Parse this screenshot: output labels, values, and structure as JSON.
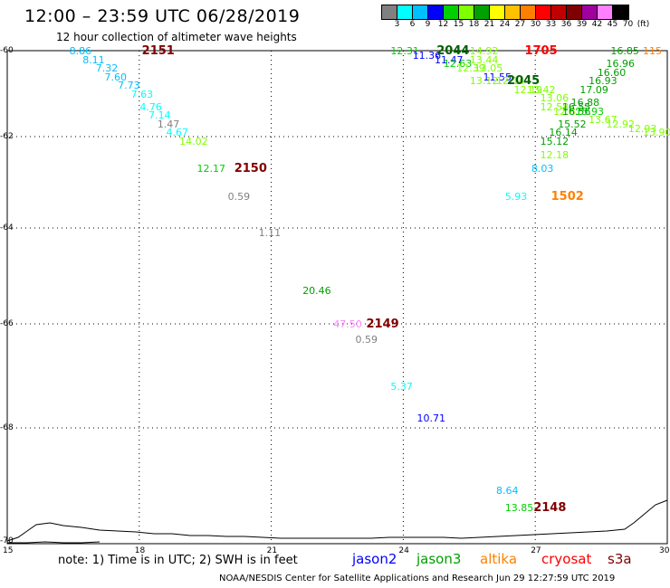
{
  "title": "12:00 – 23:59 UTC 06/28/2019",
  "subtitle": "12 hour collection of altimeter wave heights",
  "colorbar": {
    "colors": [
      "#808080",
      "#00ffff",
      "#00bfff",
      "#0000ff",
      "#00d000",
      "#80ff00",
      "#00a000",
      "#ffff00",
      "#ffc000",
      "#ff8000",
      "#ff0000",
      "#c00000",
      "#800000",
      "#a000a0",
      "#ff80ff",
      "#000000"
    ],
    "labels": [
      "3",
      "6",
      "9",
      "12",
      "15",
      "18",
      "21",
      "24",
      "27",
      "30",
      "33",
      "36",
      "39",
      "42",
      "45",
      "70",
      "(ft)"
    ]
  },
  "axes": {
    "y_ticks": [
      "-60",
      "-62",
      "-64",
      "-66",
      "-68",
      "-70"
    ],
    "x_ticks": [
      "15",
      "18",
      "21",
      "24",
      "27",
      "30"
    ]
  },
  "chart_data": {
    "type": "scatter",
    "x_range_deg_e": [
      15,
      30
    ],
    "y_range_deg_lat": [
      -70,
      -60
    ],
    "grid": "dotted",
    "points": [
      {
        "id": "p1",
        "text": "8.86",
        "color": "#00bfff",
        "lon": 16.7,
        "lat": -60.0
      },
      {
        "id": "p2",
        "text": "8.11",
        "color": "#00bfff",
        "lon": 17.0,
        "lat": -60.2
      },
      {
        "id": "p3",
        "text": "7.32",
        "color": "#00bfff",
        "lon": 17.3,
        "lat": -60.4
      },
      {
        "id": "p4",
        "text": "7.60",
        "color": "#00bfff",
        "lon": 17.5,
        "lat": -60.6
      },
      {
        "id": "p5",
        "text": "7.73",
        "color": "#00bfff",
        "lon": 17.8,
        "lat": -60.8
      },
      {
        "id": "p6",
        "text": "7.63",
        "color": "#00ffff",
        "lon": 18.1,
        "lat": -61.0
      },
      {
        "id": "p7",
        "text": "4.76",
        "color": "#00ffff",
        "lon": 18.3,
        "lat": -61.3
      },
      {
        "id": "p8",
        "text": "7.14",
        "color": "#00ffff",
        "lon": 18.5,
        "lat": -61.5
      },
      {
        "id": "p9",
        "text": "1.47",
        "color": "#808080",
        "lon": 18.7,
        "lat": -61.7
      },
      {
        "id": "p10",
        "text": "4.67",
        "color": "#00ffff",
        "lon": 18.9,
        "lat": -61.9
      },
      {
        "id": "p11",
        "text": "14.02",
        "color": "#80ff00",
        "lon": 19.2,
        "lat": -62.1
      },
      {
        "id": "p12",
        "text": "12.17",
        "color": "#00d000",
        "lon": 19.6,
        "lat": -62.7
      },
      {
        "id": "p13",
        "text": "0.59",
        "color": "#808080",
        "lon": 20.3,
        "lat": -63.3
      },
      {
        "id": "p14",
        "text": "1.11",
        "color": "#808080",
        "lon": 21.0,
        "lat": -64.1
      },
      {
        "id": "p15",
        "text": "20.46",
        "color": "#00a000",
        "lon": 22.0,
        "lat": -65.3
      },
      {
        "id": "p16",
        "text": "47.50",
        "color": "#ff80ff",
        "lon": 22.7,
        "lat": -66.0
      },
      {
        "id": "p17",
        "text": "0.59",
        "color": "#808080",
        "lon": 23.2,
        "lat": -66.3
      },
      {
        "id": "p18",
        "text": "5.37",
        "color": "#00ffff",
        "lon": 24.0,
        "lat": -67.2
      },
      {
        "id": "p19",
        "text": "10.71",
        "color": "#0000ff",
        "lon": 24.6,
        "lat": -67.8
      },
      {
        "id": "p20",
        "text": "8.64",
        "color": "#00bfff",
        "lon": 26.4,
        "lat": -69.1
      },
      {
        "id": "p21",
        "text": "13.85",
        "color": "#00d000",
        "lon": 26.6,
        "lat": -69.4
      },
      {
        "id": "p22",
        "text": "8.03",
        "color": "#00bfff",
        "lon": 27.2,
        "lat": -62.7
      },
      {
        "id": "p23",
        "text": "5.93",
        "color": "#00ffff",
        "lon": 26.6,
        "lat": -63.3
      },
      {
        "id": "p24",
        "text": "12.31",
        "color": "#00d000",
        "lon": 24.0,
        "lat": -60.0
      },
      {
        "id": "p25",
        "text": "11.36",
        "color": "#0000ff",
        "lon": 24.5,
        "lat": -60.1
      },
      {
        "id": "p26",
        "text": "11.47",
        "color": "#0000ff",
        "lon": 25.0,
        "lat": -60.2
      },
      {
        "id": "p27",
        "text": "12.63",
        "color": "#00d000",
        "lon": 25.2,
        "lat": -60.3
      },
      {
        "id": "p28",
        "text": "14.92",
        "color": "#80ff00",
        "lon": 25.8,
        "lat": -60.0
      },
      {
        "id": "p29",
        "text": "13.44",
        "color": "#80ff00",
        "lon": 25.8,
        "lat": -60.2
      },
      {
        "id": "p30",
        "text": "12.39",
        "color": "#80ff00",
        "lon": 25.5,
        "lat": -60.4
      },
      {
        "id": "p31",
        "text": "13.05",
        "color": "#80ff00",
        "lon": 25.9,
        "lat": -60.4
      },
      {
        "id": "p32",
        "text": "11.55",
        "color": "#0000ff",
        "lon": 26.1,
        "lat": -60.6
      },
      {
        "id": "p33",
        "text": "13.12",
        "color": "#80ff00",
        "lon": 25.8,
        "lat": -60.7
      },
      {
        "id": "p34",
        "text": "12.14",
        "color": "#80ff00",
        "lon": 26.4,
        "lat": -60.7
      },
      {
        "id": "p35",
        "text": "12.19",
        "color": "#80ff00",
        "lon": 26.8,
        "lat": -60.9
      },
      {
        "id": "p36",
        "text": "13.42",
        "color": "#80ff00",
        "lon": 27.1,
        "lat": -60.9
      },
      {
        "id": "p37",
        "text": "13.06",
        "color": "#80ff00",
        "lon": 27.4,
        "lat": -61.1
      },
      {
        "id": "p38",
        "text": "12.58",
        "color": "#80ff00",
        "lon": 27.4,
        "lat": -61.3
      },
      {
        "id": "p39",
        "text": "12.87",
        "color": "#80ff00",
        "lon": 27.7,
        "lat": -61.4
      },
      {
        "id": "p40",
        "text": "16.85",
        "color": "#00a000",
        "lon": 29.0,
        "lat": -60.0
      },
      {
        "id": "p41",
        "text": "16.96",
        "color": "#00a000",
        "lon": 28.9,
        "lat": -60.3
      },
      {
        "id": "p42",
        "text": "16.60",
        "color": "#00a000",
        "lon": 28.7,
        "lat": -60.5
      },
      {
        "id": "p43",
        "text": "16.93",
        "color": "#00a000",
        "lon": 28.5,
        "lat": -60.7
      },
      {
        "id": "p44",
        "text": "17.09",
        "color": "#00a000",
        "lon": 28.3,
        "lat": -60.9
      },
      {
        "id": "p45",
        "text": "16.88",
        "color": "#00a000",
        "lon": 28.1,
        "lat": -61.2
      },
      {
        "id": "p46",
        "text": "16.55",
        "color": "#00a000",
        "lon": 27.9,
        "lat": -61.3
      },
      {
        "id": "p47",
        "text": "16.56",
        "color": "#00a000",
        "lon": 27.9,
        "lat": -61.4
      },
      {
        "id": "p48",
        "text": "15.93",
        "color": "#00d000",
        "lon": 28.2,
        "lat": -61.4
      },
      {
        "id": "p49",
        "text": "15.52",
        "color": "#00a000",
        "lon": 27.8,
        "lat": -61.7
      },
      {
        "id": "p50",
        "text": "13.67",
        "color": "#80ff00",
        "lon": 28.5,
        "lat": -61.6
      },
      {
        "id": "p51",
        "text": "12.92",
        "color": "#80ff00",
        "lon": 28.9,
        "lat": -61.7
      },
      {
        "id": "p52",
        "text": "12.93",
        "color": "#80ff00",
        "lon": 29.4,
        "lat": -61.8
      },
      {
        "id": "p53",
        "text": "13.90",
        "color": "#80ff00",
        "lon": 29.8,
        "lat": -61.9
      },
      {
        "id": "p54",
        "text": "16.14",
        "color": "#00a000",
        "lon": 27.6,
        "lat": -61.9
      },
      {
        "id": "p55",
        "text": "15.12",
        "color": "#00a000",
        "lon": 27.4,
        "lat": -62.1
      },
      {
        "id": "p56",
        "text": "12.18",
        "color": "#80ff00",
        "lon": 27.4,
        "lat": -62.4
      },
      {
        "id": "p57",
        "text": "115",
        "color": "#ff8000",
        "lon": 29.9,
        "lat": -60.0
      }
    ],
    "pass_labels": [
      {
        "id": "L2151",
        "text": "2151",
        "color": "#800000",
        "lon": 18.1,
        "lat": -60.0
      },
      {
        "id": "L2150",
        "text": "2150",
        "color": "#800000",
        "lon": 20.2,
        "lat": -62.7
      },
      {
        "id": "L2149",
        "text": "2149",
        "color": "#800000",
        "lon": 23.2,
        "lat": -66.0
      },
      {
        "id": "L2148",
        "text": "2148",
        "color": "#800000",
        "lon": 27.0,
        "lat": -69.4
      },
      {
        "id": "L2044",
        "text": "2044",
        "color": "#006000",
        "lon": 24.8,
        "lat": -60.0
      },
      {
        "id": "L2045",
        "text": "2045",
        "color": "#006000",
        "lon": 26.4,
        "lat": -60.7
      },
      {
        "id": "L1705",
        "text": "1705",
        "color": "#ff0000",
        "lon": 26.8,
        "lat": -60.0
      },
      {
        "id": "L1502",
        "text": "1502",
        "color": "#ff8000",
        "lon": 27.4,
        "lat": -63.3
      }
    ]
  },
  "legend": {
    "note": "note: 1) Time is in UTC; 2) SWH is in feet",
    "satellites": [
      {
        "name": "jason2",
        "color": "#0000ff"
      },
      {
        "name": "jason3",
        "color": "#00a000"
      },
      {
        "name": "altika",
        "color": "#ff8000"
      },
      {
        "name": "cryosat",
        "color": "#ff0000"
      },
      {
        "name": "s3a",
        "color": "#800000"
      }
    ]
  },
  "credit": "NOAA/NESDIS Center for Satellite Applications and Research    Jun 29 12:27:59 UTC 2019"
}
